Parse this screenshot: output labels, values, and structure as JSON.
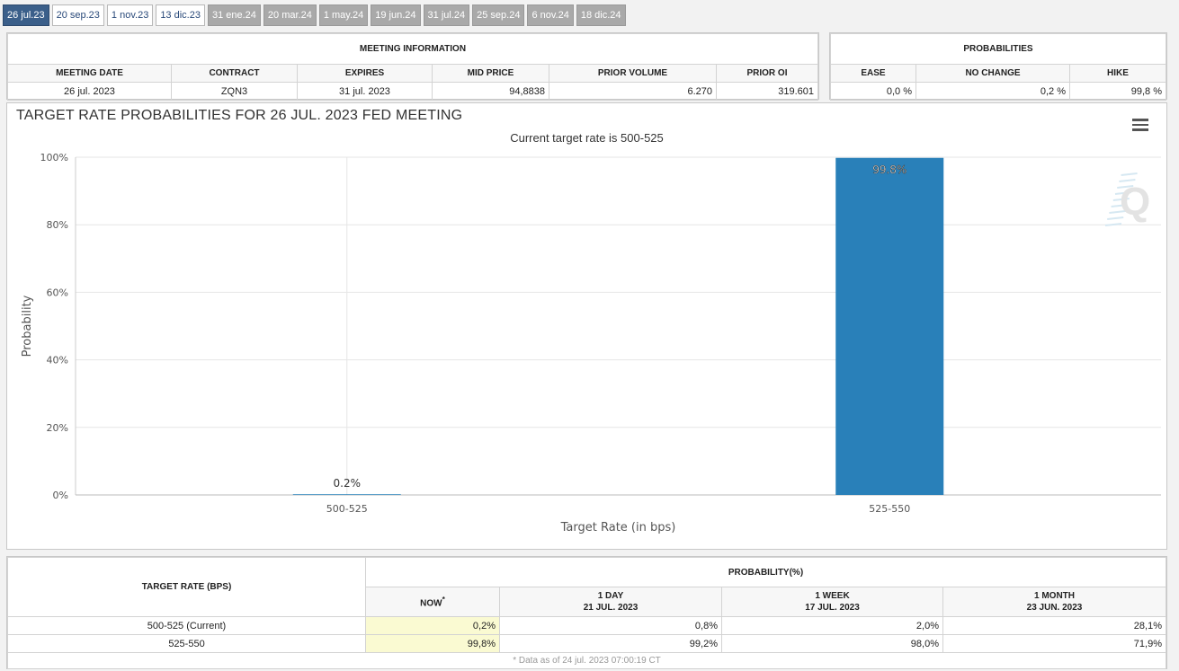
{
  "tabs": [
    {
      "label": "26 jul.23",
      "state": "active"
    },
    {
      "label": "20 sep.23",
      "state": "normal"
    },
    {
      "label": "1 nov.23",
      "state": "normal"
    },
    {
      "label": "13 dic.23",
      "state": "normal"
    },
    {
      "label": "31 ene.24",
      "state": "future"
    },
    {
      "label": "20 mar.24",
      "state": "future"
    },
    {
      "label": "1 may.24",
      "state": "future"
    },
    {
      "label": "19 jun.24",
      "state": "future"
    },
    {
      "label": "31 jul.24",
      "state": "future"
    },
    {
      "label": "25 sep.24",
      "state": "future"
    },
    {
      "label": "6 nov.24",
      "state": "future"
    },
    {
      "label": "18 dic.24",
      "state": "future"
    }
  ],
  "meeting_info": {
    "title": "MEETING INFORMATION",
    "headers": [
      "MEETING DATE",
      "CONTRACT",
      "EXPIRES",
      "MID PRICE",
      "PRIOR VOLUME",
      "PRIOR OI"
    ],
    "values": {
      "meeting_date": "26 jul. 2023",
      "contract": "ZQN3",
      "expires": "31 jul. 2023",
      "mid_price": "94,8838",
      "prior_volume": "6.270",
      "prior_oi": "319.601"
    }
  },
  "probabilities": {
    "title": "PROBABILITIES",
    "headers": [
      "EASE",
      "NO CHANGE",
      "HIKE"
    ],
    "values": {
      "ease": "0,0 %",
      "no_change": "0,2 %",
      "hike": "99,8 %"
    }
  },
  "chart_data": {
    "type": "bar",
    "title": "TARGET RATE PROBABILITIES FOR 26 JUL. 2023 FED MEETING",
    "subtitle": "Current target rate is 500-525",
    "categories": [
      "500-525",
      "525-550"
    ],
    "values": [
      0.2,
      99.8
    ],
    "data_labels": [
      "0.2%",
      "99.8%"
    ],
    "xlabel": "Target Rate (in bps)",
    "ylabel": "Probability",
    "ylim": [
      0,
      100
    ],
    "yticks": [
      "0%",
      "20%",
      "40%",
      "60%",
      "80%",
      "100%"
    ],
    "ytick_values": [
      0,
      20,
      40,
      60,
      80,
      100
    ],
    "bar_color": "#2980b9",
    "grid": true,
    "watermark": "Q"
  },
  "prob_table": {
    "row_header": "TARGET RATE (BPS)",
    "group_header": "PROBABILITY(%)",
    "columns": [
      {
        "label": "NOW",
        "sub": "",
        "marker": "*"
      },
      {
        "label": "1 DAY",
        "sub": "21 JUL. 2023"
      },
      {
        "label": "1 WEEK",
        "sub": "17 JUL. 2023"
      },
      {
        "label": "1 MONTH",
        "sub": "23 JUN. 2023"
      }
    ],
    "rows": [
      {
        "rate": "500-525 (Current)",
        "values": [
          "0,2%",
          "0,8%",
          "2,0%",
          "28,1%"
        ]
      },
      {
        "rate": "525-550",
        "values": [
          "99,8%",
          "99,2%",
          "98,0%",
          "71,9%"
        ]
      }
    ],
    "note": "* Data as of 24 jul. 2023 07:00:19 CT"
  }
}
